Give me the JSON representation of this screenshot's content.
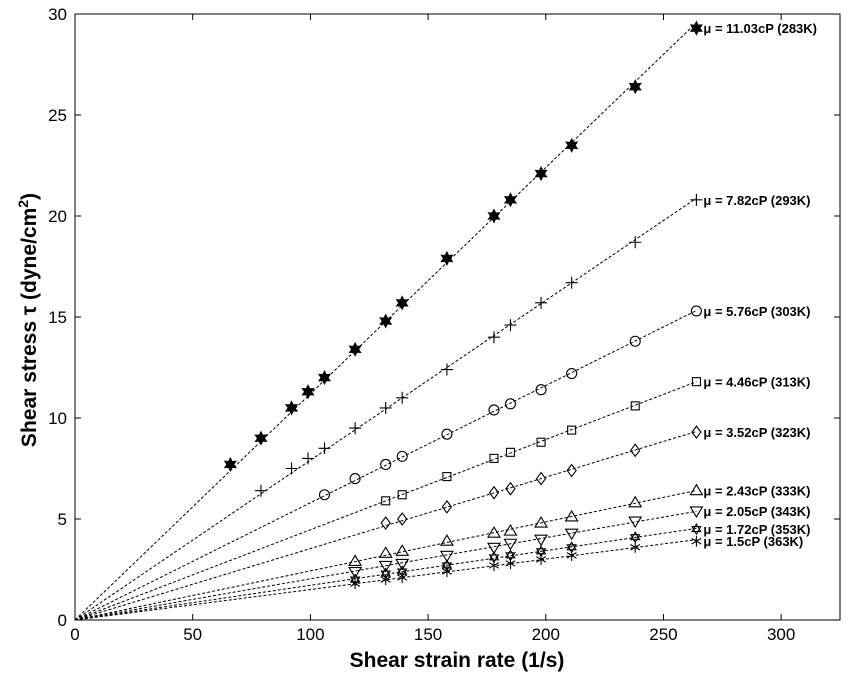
{
  "chart_data": {
    "type": "scatter",
    "title": "",
    "xlabel": "Shear strain rate (1/s)",
    "ylabel_main": "Shear stress τ (dyne/cm",
    "ylabel_sup": "2",
    "ylabel_close": ")",
    "xlim": [
      0,
      325
    ],
    "ylim": [
      0,
      30
    ],
    "xticks": [
      0,
      50,
      100,
      150,
      200,
      250,
      300
    ],
    "yticks": [
      0,
      5,
      10,
      15,
      20,
      25,
      30
    ],
    "grid": false,
    "legend": "inline labels at line ends",
    "fit_lines": "dashed, through origin",
    "series": [
      {
        "name": "μ = 11.03cP (283K)",
        "marker": "filled-star",
        "x": [
          66,
          79,
          92,
          99,
          106,
          119,
          132,
          139,
          158,
          178,
          185,
          198,
          211,
          238,
          264
        ],
        "y": [
          7.7,
          9.0,
          10.5,
          11.3,
          12.0,
          13.4,
          14.8,
          15.7,
          17.9,
          20.0,
          20.8,
          22.1,
          23.5,
          26.4,
          29.3
        ]
      },
      {
        "name": "μ = 7.82cP (293K)",
        "marker": "plus",
        "x": [
          79,
          92,
          99,
          106,
          119,
          132,
          139,
          158,
          178,
          185,
          198,
          211,
          238,
          264
        ],
        "y": [
          6.4,
          7.5,
          8.0,
          8.5,
          9.5,
          10.5,
          11.0,
          12.4,
          14.0,
          14.6,
          15.7,
          16.7,
          18.7,
          20.8
        ]
      },
      {
        "name": "μ = 5.76cP (303K)",
        "marker": "circle",
        "x": [
          106,
          119,
          132,
          139,
          158,
          178,
          185,
          198,
          211,
          238,
          264
        ],
        "y": [
          6.2,
          7.0,
          7.7,
          8.1,
          9.2,
          10.4,
          10.7,
          11.4,
          12.2,
          13.8,
          15.3
        ]
      },
      {
        "name": "μ = 4.46cP (313K)",
        "marker": "square",
        "x": [
          132,
          139,
          158,
          178,
          185,
          198,
          211,
          238,
          264
        ],
        "y": [
          5.9,
          6.2,
          7.1,
          8.0,
          8.3,
          8.8,
          9.4,
          10.6,
          11.8
        ]
      },
      {
        "name": "μ = 3.52cP (323K)",
        "marker": "diamond",
        "x": [
          132,
          139,
          158,
          178,
          185,
          198,
          211,
          238,
          264
        ],
        "y": [
          4.8,
          5.0,
          5.6,
          6.3,
          6.5,
          7.0,
          7.4,
          8.4,
          9.3
        ]
      },
      {
        "name": "μ = 2.43cP (333K)",
        "marker": "triangle-up",
        "x": [
          119,
          132,
          139,
          158,
          178,
          185,
          198,
          211,
          238,
          264
        ],
        "y": [
          2.9,
          3.3,
          3.4,
          3.9,
          4.3,
          4.4,
          4.8,
          5.1,
          5.8,
          6.4
        ]
      },
      {
        "name": "μ = 2.05cP (343K)",
        "marker": "triangle-down",
        "x": [
          119,
          132,
          139,
          158,
          178,
          185,
          198,
          211,
          238,
          264
        ],
        "y": [
          2.4,
          2.7,
          2.8,
          3.2,
          3.6,
          3.8,
          4.0,
          4.3,
          4.9,
          5.4
        ]
      },
      {
        "name": "μ = 1.72cP (353K)",
        "marker": "hexagram",
        "x": [
          119,
          132,
          139,
          158,
          178,
          185,
          198,
          211,
          238,
          264
        ],
        "y": [
          2.0,
          2.3,
          2.4,
          2.7,
          3.1,
          3.2,
          3.4,
          3.6,
          4.1,
          4.5
        ]
      },
      {
        "name": "μ = 1.5cP (363K)",
        "marker": "asterisk",
        "x": [
          119,
          132,
          139,
          158,
          178,
          185,
          198,
          211,
          238,
          264
        ],
        "y": [
          1.8,
          2.0,
          2.1,
          2.4,
          2.7,
          2.8,
          3.0,
          3.2,
          3.6,
          3.9
        ]
      }
    ]
  }
}
